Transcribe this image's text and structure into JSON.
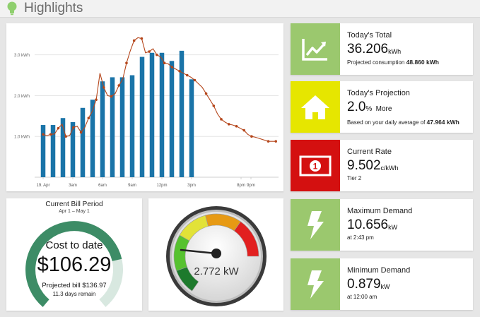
{
  "header": {
    "title": "Highlights"
  },
  "chart_data": {
    "type": "bar",
    "x_tick_labels": [
      "19. Apr",
      "3am",
      "6am",
      "9am",
      "12pm",
      "3pm",
      "8pm",
      "9pm"
    ],
    "y_tick_labels": [
      "1.0 kWh",
      "2.0 kWh",
      "3.0 kWh"
    ],
    "ylim": [
      0,
      3.6
    ],
    "series": [
      {
        "type": "bar",
        "color": "#1a74a8",
        "values": [
          1.28,
          1.28,
          1.45,
          1.35,
          1.7,
          1.9,
          2.35,
          2.45,
          2.45,
          2.5,
          2.95,
          3.05,
          3.05,
          2.85,
          3.1,
          2.4
        ]
      },
      {
        "type": "line",
        "color": "#b5461b",
        "x": [
          0,
          0.5,
          1,
          1.5,
          2,
          2.5,
          3,
          3.5,
          4,
          4.5,
          5,
          5.5,
          6,
          6.5,
          7,
          7.5,
          8,
          8.5,
          9,
          9.5,
          10,
          10.5,
          11,
          11.5,
          12,
          12.5,
          13,
          13.5,
          14,
          14.5,
          15,
          15.5,
          16,
          16.5,
          17,
          17.5,
          18,
          18.5,
          19,
          19.5,
          20,
          21,
          21.5,
          22,
          22.5,
          23,
          23.5,
          24,
          24.5,
          25,
          25.5,
          26,
          26.5,
          27,
          27.5,
          28,
          29.7,
          30.7
        ],
        "values": [
          1.05,
          1.02,
          1.05,
          1.06,
          1.2,
          1.3,
          1.0,
          1.02,
          1.22,
          1.25,
          1.1,
          1.22,
          1.45,
          1.62,
          1.9,
          2.55,
          2.2,
          2.0,
          1.98,
          2.05,
          2.25,
          2.4,
          2.8,
          3.1,
          3.35,
          3.42,
          3.4,
          3.05,
          3.08,
          3.15,
          3.0,
          2.95,
          2.8,
          2.78,
          2.7,
          2.65,
          2.6,
          2.55,
          2.5,
          2.45,
          2.38,
          2.2,
          2.05,
          1.9,
          1.75,
          1.55,
          1.42,
          1.35,
          1.3,
          1.28,
          1.25,
          1.2,
          1.15,
          1.05,
          1.0,
          0.98,
          0.88,
          0.88
        ]
      }
    ]
  },
  "bill": {
    "title": "Current Bill Period",
    "range": "Apr 1 – May 1",
    "cost_label": "Cost to date",
    "amount": "$106.29",
    "projected": "Projected bill $136.97",
    "remain": "11.3 days remain",
    "fraction_spent": 0.776
  },
  "gauge": {
    "value_text": "2.772 kW",
    "level": 0.3
  },
  "stats": [
    {
      "label": "Today's Total",
      "value": "36.206",
      "unit": "kWh",
      "sub_prefix": "Projected consumption",
      "sub_bold": "48.860 kWh",
      "icon": "chart-up-icon",
      "color": "#9bc86e"
    },
    {
      "label": "Today's Projection",
      "value": "2.0",
      "unit": "%",
      "suffix": "More",
      "sub_prefix": "Based on your daily average of",
      "sub_bold": "47.964 kWh",
      "icon": "home-icon",
      "color": "#e6e600"
    },
    {
      "label": "Current Rate",
      "value": "9.502",
      "unit": "c/kWh",
      "sub_prefix": "Tier 2",
      "sub_bold": "",
      "icon": "banknote-icon",
      "color": "#d41010"
    },
    {
      "label": "Maximum Demand",
      "value": "10.656",
      "unit": "kW",
      "sub_prefix": "at 2:43 pm",
      "sub_bold": "",
      "icon": "lightning-icon",
      "color": "#9bc86e"
    },
    {
      "label": "Minimum Demand",
      "value": "0.879",
      "unit": "kW",
      "sub_prefix": "at 12:00 am",
      "sub_bold": "",
      "icon": "lightning-icon",
      "color": "#9bc86e"
    }
  ]
}
